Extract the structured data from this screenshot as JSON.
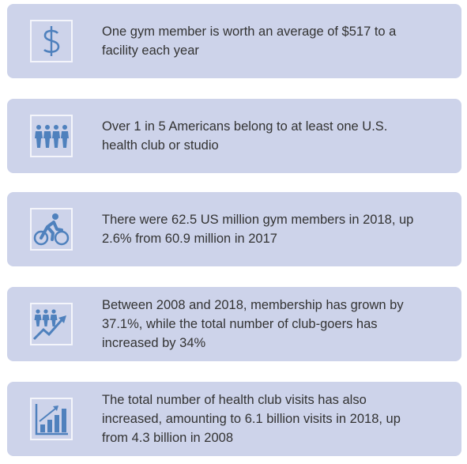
{
  "items": [
    {
      "lines": [
        "One gym member is worth an average of $517 to a",
        "facility each year"
      ]
    },
    {
      "lines": [
        "Over 1 in 5 Americans belong to at least one U.S.",
        "health club or studio"
      ]
    },
    {
      "lines": [
        "There were 62.5 US million gym members in 2018, up",
        "2.6% from 60.9 million in 2017"
      ]
    },
    {
      "lines": [
        "Between 2008 and 2018, membership has grown by",
        "37.1%, while the total number of club-goers has",
        "increased by 34%"
      ]
    },
    {
      "lines": [
        "The total number of health club visits has also",
        "increased, amounting to 6.1 billion visits in 2018, up",
        "from 4.3 billion in 2008"
      ]
    }
  ]
}
